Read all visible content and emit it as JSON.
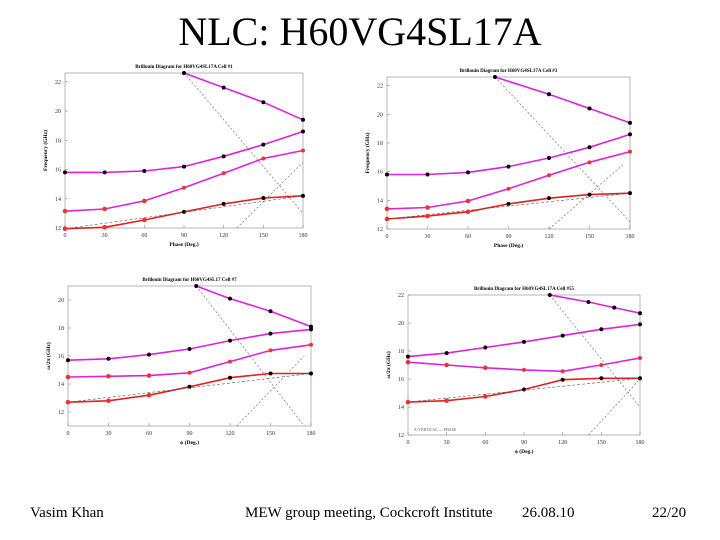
{
  "slide": {
    "title": "NLC: H60VG4SL17A",
    "footer": {
      "author": "Vasim Khan",
      "meeting": "MEW group meeting, Cockcroft Institute",
      "date": "26.08.10",
      "page": "22/20"
    }
  },
  "chart_data": [
    {
      "type": "line",
      "title": "Brillouin Diagram for H60VG4SL17A Cell #1",
      "xlabel": "Phase (Deg.)",
      "ylabel": "Frequency (GHz)",
      "xlim": [
        0,
        180
      ],
      "ylim": [
        12,
        22.6
      ],
      "xticks": [
        0,
        30,
        60,
        90,
        120,
        150,
        180
      ],
      "yticks": [
        12,
        14,
        16,
        18,
        20,
        22
      ],
      "light_line_up": [
        [
          90,
          22.6
        ],
        [
          180,
          13
        ]
      ],
      "light_line_down": [
        [
          130,
          12
        ],
        [
          180,
          16.5
        ]
      ],
      "series": [
        {
          "name": "band 1",
          "color": "#dd2222",
          "marker": "#000000",
          "x": [
            0,
            30,
            60,
            90,
            120,
            150,
            180
          ],
          "y": [
            11.95,
            12.05,
            12.55,
            13.1,
            13.65,
            14.05,
            14.2
          ]
        },
        {
          "name": "band 1 fit",
          "color": "#dd2222",
          "marker": "#ee3333",
          "x": [
            0,
            180
          ],
          "y": [
            11.95,
            14.2
          ]
        },
        {
          "name": "band 2",
          "color": "#dd22dd",
          "marker": "#ee3333",
          "x": [
            0,
            30,
            60,
            90,
            120,
            150,
            180
          ],
          "y": [
            13.15,
            13.3,
            13.85,
            14.75,
            15.75,
            16.75,
            17.3
          ]
        },
        {
          "name": "band 3",
          "color": "#dd22dd",
          "marker": "#000000",
          "x": [
            0,
            30,
            60,
            90,
            120,
            150,
            180
          ],
          "y": [
            15.8,
            15.8,
            15.9,
            16.2,
            16.9,
            17.7,
            18.6
          ]
        },
        {
          "name": "band 4",
          "color": "#dd22dd",
          "marker": "#000000",
          "x": [
            90,
            120,
            150,
            180
          ],
          "y": [
            22.6,
            21.6,
            20.6,
            19.4
          ]
        }
      ]
    },
    {
      "type": "line",
      "title": "Brillouin Diagram for H60VG4SL17A Cell #3",
      "xlabel": "Phase (Deg.)",
      "ylabel": "Frequency (GHz)",
      "xlim": [
        0,
        180
      ],
      "ylim": [
        12,
        22.6
      ],
      "xticks": [
        0,
        30,
        60,
        90,
        120,
        150,
        180
      ],
      "yticks": [
        12,
        14,
        16,
        18,
        20,
        22
      ],
      "light_line_up": [
        [
          80,
          22.6
        ],
        [
          180,
          12.5
        ]
      ],
      "light_line_down": [
        [
          120,
          12
        ],
        [
          175,
          16.5
        ]
      ],
      "series": [
        {
          "name": "band 1",
          "color": "#dd2222",
          "marker": "#000000",
          "x": [
            0,
            30,
            60,
            90,
            120,
            150,
            180
          ],
          "y": [
            12.7,
            12.9,
            13.2,
            13.75,
            14.15,
            14.4,
            14.5
          ]
        },
        {
          "name": "band 1 fit",
          "color": "#dd2222",
          "marker": "#ee3333",
          "x": [
            0,
            180
          ],
          "y": [
            12.7,
            14.5
          ]
        },
        {
          "name": "band 2",
          "color": "#dd22dd",
          "marker": "#ee3333",
          "x": [
            0,
            30,
            60,
            90,
            120,
            150,
            180
          ],
          "y": [
            13.4,
            13.5,
            13.95,
            14.8,
            15.75,
            16.65,
            17.4
          ]
        },
        {
          "name": "band 3",
          "color": "#dd22dd",
          "marker": "#000000",
          "x": [
            0,
            30,
            60,
            90,
            120,
            150,
            180
          ],
          "y": [
            15.8,
            15.8,
            15.95,
            16.35,
            16.95,
            17.7,
            18.6
          ]
        },
        {
          "name": "band 4",
          "color": "#dd22dd",
          "marker": "#000000",
          "x": [
            80,
            120,
            150,
            180
          ],
          "y": [
            22.6,
            21.4,
            20.4,
            19.4
          ]
        }
      ]
    },
    {
      "type": "line",
      "title": "Brillouin Diagram for H60VG4SL17 Cell #7",
      "xlabel": "ϕ (Deg.)",
      "ylabel": "ω/2π (GHz)",
      "xlim": [
        0,
        180
      ],
      "ylim": [
        11,
        21
      ],
      "xticks": [
        0,
        30,
        60,
        90,
        120,
        150,
        180
      ],
      "yticks": [
        12,
        14,
        16,
        18,
        20
      ],
      "light_line_up": [
        [
          95,
          21
        ],
        [
          175,
          11
        ]
      ],
      "light_line_down": [
        [
          125,
          11
        ],
        [
          175,
          16
        ]
      ],
      "series": [
        {
          "name": "band 1",
          "color": "#dd2222",
          "marker": "#000000",
          "x": [
            0,
            30,
            60,
            90,
            120,
            150,
            180
          ],
          "y": [
            12.7,
            12.8,
            13.2,
            13.8,
            14.45,
            14.75,
            14.75
          ]
        },
        {
          "name": "band 1 fit",
          "color": "#dd2222",
          "marker": "#ee3333",
          "x": [
            0,
            180
          ],
          "y": [
            12.7,
            14.75
          ]
        },
        {
          "name": "band 2",
          "color": "#dd22dd",
          "marker": "#ee3333",
          "x": [
            0,
            30,
            60,
            90,
            120,
            150,
            180
          ],
          "y": [
            14.5,
            14.55,
            14.6,
            14.8,
            15.6,
            16.4,
            16.8
          ]
        },
        {
          "name": "band 3",
          "color": "#dd22dd",
          "marker": "#000000",
          "x": [
            0,
            30,
            60,
            90,
            120,
            150,
            180
          ],
          "y": [
            15.7,
            15.8,
            16.1,
            16.5,
            17.1,
            17.6,
            17.9
          ]
        },
        {
          "name": "band 4",
          "color": "#dd22dd",
          "marker": "#000000",
          "x": [
            95,
            120,
            150,
            180
          ],
          "y": [
            21,
            20.1,
            19.2,
            18.1
          ]
        }
      ]
    },
    {
      "type": "line",
      "title": "Brillouin Diagram for H60VG4SL17A Cell #55",
      "xlabel": "ϕ (Deg.)",
      "ylabel": "ω/2π (GHz)",
      "xlim": [
        0,
        180
      ],
      "ylim": [
        12,
        22
      ],
      "xticks": [
        0,
        30,
        60,
        90,
        120,
        150,
        180
      ],
      "yticks": [
        12,
        14,
        16,
        18,
        20,
        22
      ],
      "note": "X-VERTICAL — PHASE",
      "light_line_up": [
        [
          110,
          22
        ],
        [
          180,
          14
        ]
      ],
      "light_line_down": [
        [
          140,
          12
        ],
        [
          180,
          16
        ]
      ],
      "series": [
        {
          "name": "band 1",
          "color": "#dd2222",
          "marker": "#000000",
          "x": [
            0,
            30,
            60,
            90,
            120,
            150,
            180
          ],
          "y": [
            14.35,
            14.45,
            14.75,
            15.25,
            15.95,
            16.05,
            16.05
          ]
        },
        {
          "name": "band 1 fit",
          "color": "#dd2222",
          "marker": "#ee3333",
          "x": [
            0,
            180
          ],
          "y": [
            14.35,
            16.05
          ]
        },
        {
          "name": "band 2",
          "color": "#dd22dd",
          "marker": "#ee3333",
          "x": [
            0,
            30,
            60,
            90,
            120,
            150,
            180
          ],
          "y": [
            17.2,
            17.0,
            16.8,
            16.65,
            16.55,
            17.0,
            17.5
          ]
        },
        {
          "name": "band 3",
          "color": "#dd22dd",
          "marker": "#000000",
          "x": [
            0,
            30,
            60,
            90,
            120,
            150,
            180
          ],
          "y": [
            17.6,
            17.85,
            18.25,
            18.65,
            19.1,
            19.55,
            19.9
          ]
        },
        {
          "name": "band 4",
          "color": "#dd22dd",
          "marker": "#000000",
          "x": [
            110,
            140,
            160,
            180
          ],
          "y": [
            22,
            21.5,
            21.1,
            20.7
          ]
        }
      ]
    }
  ]
}
